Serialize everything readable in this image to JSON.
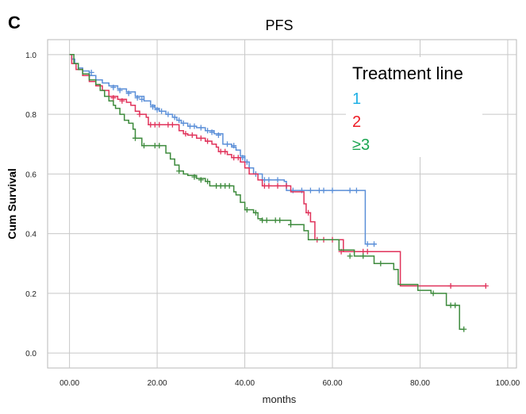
{
  "panel_label": "C",
  "chart_data": {
    "type": "line",
    "subtype": "kaplan-meier",
    "title": "PFS",
    "xlabel": "months",
    "ylabel": "Cum Survival",
    "xlim": [
      -5,
      102
    ],
    "ylim": [
      -0.05,
      1.05
    ],
    "x_ticks": [
      0,
      20,
      40,
      60,
      80,
      100
    ],
    "x_tick_labels": [
      "00.00",
      "20.00",
      "40.00",
      "60.00",
      "80.00",
      "100.00"
    ],
    "y_ticks": [
      0,
      0.2,
      0.4,
      0.6,
      0.8,
      1.0
    ],
    "y_tick_labels": [
      "0.0",
      "0.2",
      "0.4",
      "0.6",
      "0.8",
      "1.0"
    ],
    "grid": true,
    "legend": {
      "title": "Treatment line",
      "position": "top-right",
      "entries": [
        {
          "label": "1",
          "color": "#1fb0e6"
        },
        {
          "label": "2",
          "color": "#ee1c25"
        },
        {
          "label": "≥3",
          "color": "#1aa550"
        }
      ]
    },
    "series": [
      {
        "name": "1",
        "color": "#5b8fd8",
        "steps": [
          [
            0,
            1.0
          ],
          [
            0.5,
            0.985
          ],
          [
            1.2,
            0.97
          ],
          [
            2,
            0.955
          ],
          [
            3,
            0.945
          ],
          [
            4.5,
            0.93
          ],
          [
            6,
            0.915
          ],
          [
            7.5,
            0.905
          ],
          [
            9,
            0.895
          ],
          [
            11,
            0.885
          ],
          [
            13,
            0.875
          ],
          [
            15,
            0.86
          ],
          [
            17,
            0.845
          ],
          [
            18.5,
            0.83
          ],
          [
            19.5,
            0.82
          ],
          [
            20.5,
            0.81
          ],
          [
            22,
            0.8
          ],
          [
            23.5,
            0.79
          ],
          [
            24.5,
            0.78
          ],
          [
            25.5,
            0.77
          ],
          [
            27,
            0.76
          ],
          [
            29,
            0.755
          ],
          [
            31,
            0.745
          ],
          [
            33,
            0.735
          ],
          [
            35,
            0.7
          ],
          [
            37,
            0.69
          ],
          [
            38,
            0.68
          ],
          [
            39,
            0.66
          ],
          [
            40,
            0.64
          ],
          [
            41,
            0.62
          ],
          [
            42,
            0.6
          ],
          [
            44,
            0.58
          ],
          [
            47,
            0.58
          ],
          [
            49,
            0.575
          ],
          [
            49.5,
            0.545
          ],
          [
            67,
            0.545
          ],
          [
            67.5,
            0.365
          ],
          [
            70,
            0.365
          ]
        ],
        "censors": [
          [
            5,
            0.94
          ],
          [
            10,
            0.89
          ],
          [
            11.5,
            0.88
          ],
          [
            13.5,
            0.87
          ],
          [
            15.5,
            0.855
          ],
          [
            16.5,
            0.85
          ],
          [
            19,
            0.825
          ],
          [
            20,
            0.815
          ],
          [
            21,
            0.81
          ],
          [
            22.5,
            0.8
          ],
          [
            24,
            0.79
          ],
          [
            25,
            0.78
          ],
          [
            26,
            0.77
          ],
          [
            27.5,
            0.76
          ],
          [
            28.5,
            0.76
          ],
          [
            30,
            0.755
          ],
          [
            31.5,
            0.745
          ],
          [
            32.5,
            0.74
          ],
          [
            34,
            0.73
          ],
          [
            36,
            0.7
          ],
          [
            37.5,
            0.695
          ],
          [
            39.5,
            0.655
          ],
          [
            40.5,
            0.64
          ],
          [
            42.5,
            0.6
          ],
          [
            44.5,
            0.58
          ],
          [
            45.5,
            0.58
          ],
          [
            47.5,
            0.58
          ],
          [
            51,
            0.545
          ],
          [
            53,
            0.545
          ],
          [
            55,
            0.545
          ],
          [
            57,
            0.545
          ],
          [
            58,
            0.545
          ],
          [
            60,
            0.545
          ],
          [
            64,
            0.545
          ],
          [
            65.5,
            0.545
          ],
          [
            68,
            0.365
          ],
          [
            69.5,
            0.365
          ]
        ]
      },
      {
        "name": "2",
        "color": "#e0325a",
        "steps": [
          [
            0,
            1.0
          ],
          [
            0.5,
            0.97
          ],
          [
            1.5,
            0.95
          ],
          [
            3,
            0.93
          ],
          [
            4.5,
            0.91
          ],
          [
            6,
            0.895
          ],
          [
            7.5,
            0.88
          ],
          [
            9,
            0.86
          ],
          [
            11,
            0.85
          ],
          [
            13,
            0.84
          ],
          [
            14,
            0.83
          ],
          [
            15,
            0.81
          ],
          [
            16,
            0.8
          ],
          [
            17.5,
            0.79
          ],
          [
            18,
            0.765
          ],
          [
            24,
            0.765
          ],
          [
            25,
            0.745
          ],
          [
            26,
            0.735
          ],
          [
            27,
            0.73
          ],
          [
            29,
            0.72
          ],
          [
            31,
            0.71
          ],
          [
            32.5,
            0.7
          ],
          [
            33.5,
            0.69
          ],
          [
            34,
            0.675
          ],
          [
            36,
            0.665
          ],
          [
            37,
            0.655
          ],
          [
            39,
            0.64
          ],
          [
            40,
            0.62
          ],
          [
            41,
            0.6
          ],
          [
            43,
            0.58
          ],
          [
            44,
            0.56
          ],
          [
            50,
            0.56
          ],
          [
            50.5,
            0.54
          ],
          [
            53,
            0.54
          ],
          [
            53.5,
            0.5
          ],
          [
            54,
            0.47
          ],
          [
            55,
            0.44
          ],
          [
            56,
            0.38
          ],
          [
            62,
            0.38
          ],
          [
            62.5,
            0.34
          ],
          [
            75,
            0.34
          ],
          [
            75.5,
            0.225
          ],
          [
            95,
            0.225
          ]
        ],
        "censors": [
          [
            10,
            0.855
          ],
          [
            12,
            0.845
          ],
          [
            16,
            0.8
          ],
          [
            18.5,
            0.765
          ],
          [
            19.5,
            0.765
          ],
          [
            20.5,
            0.765
          ],
          [
            22.5,
            0.765
          ],
          [
            23.5,
            0.765
          ],
          [
            26.5,
            0.735
          ],
          [
            28,
            0.73
          ],
          [
            30,
            0.72
          ],
          [
            31.5,
            0.71
          ],
          [
            34.5,
            0.675
          ],
          [
            35.5,
            0.675
          ],
          [
            37.5,
            0.655
          ],
          [
            38.5,
            0.655
          ],
          [
            44.5,
            0.56
          ],
          [
            45.5,
            0.56
          ],
          [
            47.5,
            0.56
          ],
          [
            49.5,
            0.56
          ],
          [
            54.5,
            0.47
          ],
          [
            56.5,
            0.38
          ],
          [
            58,
            0.38
          ],
          [
            60,
            0.38
          ],
          [
            62,
            0.34
          ],
          [
            67,
            0.34
          ],
          [
            68,
            0.34
          ],
          [
            87,
            0.225
          ],
          [
            95,
            0.225
          ]
        ]
      },
      {
        "name": "≥3",
        "color": "#3d8a3c",
        "steps": [
          [
            0,
            1.0
          ],
          [
            1,
            0.97
          ],
          [
            2,
            0.95
          ],
          [
            3,
            0.935
          ],
          [
            4.5,
            0.915
          ],
          [
            6,
            0.9
          ],
          [
            7,
            0.88
          ],
          [
            8,
            0.86
          ],
          [
            9,
            0.845
          ],
          [
            10,
            0.83
          ],
          [
            10.5,
            0.82
          ],
          [
            11.5,
            0.8
          ],
          [
            12.5,
            0.78
          ],
          [
            13.5,
            0.77
          ],
          [
            14.5,
            0.75
          ],
          [
            15,
            0.72
          ],
          [
            16,
            0.72
          ],
          [
            16.5,
            0.695
          ],
          [
            21,
            0.695
          ],
          [
            22,
            0.67
          ],
          [
            23,
            0.65
          ],
          [
            24,
            0.63
          ],
          [
            25,
            0.61
          ],
          [
            26,
            0.6
          ],
          [
            27,
            0.595
          ],
          [
            29,
            0.585
          ],
          [
            31,
            0.575
          ],
          [
            32,
            0.56
          ],
          [
            37,
            0.56
          ],
          [
            37.5,
            0.54
          ],
          [
            38,
            0.53
          ],
          [
            39,
            0.505
          ],
          [
            40,
            0.48
          ],
          [
            42,
            0.47
          ],
          [
            43,
            0.45
          ],
          [
            44,
            0.445
          ],
          [
            50,
            0.445
          ],
          [
            50.5,
            0.43
          ],
          [
            53,
            0.43
          ],
          [
            53.5,
            0.41
          ],
          [
            54.5,
            0.38
          ],
          [
            61,
            0.38
          ],
          [
            61.5,
            0.345
          ],
          [
            65,
            0.325
          ],
          [
            69,
            0.325
          ],
          [
            69.5,
            0.3
          ],
          [
            73,
            0.3
          ],
          [
            74,
            0.28
          ],
          [
            75,
            0.23
          ],
          [
            79,
            0.23
          ],
          [
            79.5,
            0.21
          ],
          [
            82,
            0.21
          ],
          [
            82.5,
            0.2
          ],
          [
            85,
            0.2
          ],
          [
            86,
            0.16
          ],
          [
            88,
            0.16
          ],
          [
            89,
            0.08
          ],
          [
            90,
            0.08
          ]
        ],
        "censors": [
          [
            15,
            0.72
          ],
          [
            17,
            0.695
          ],
          [
            19.5,
            0.695
          ],
          [
            20.5,
            0.695
          ],
          [
            25,
            0.61
          ],
          [
            28.5,
            0.59
          ],
          [
            30,
            0.58
          ],
          [
            31.5,
            0.575
          ],
          [
            33.5,
            0.56
          ],
          [
            34.5,
            0.56
          ],
          [
            35.5,
            0.56
          ],
          [
            36.5,
            0.56
          ],
          [
            40.5,
            0.48
          ],
          [
            42.5,
            0.47
          ],
          [
            44,
            0.445
          ],
          [
            45,
            0.445
          ],
          [
            47,
            0.445
          ],
          [
            48,
            0.445
          ],
          [
            50.5,
            0.43
          ],
          [
            64,
            0.325
          ],
          [
            67,
            0.325
          ],
          [
            71,
            0.3
          ],
          [
            83,
            0.2
          ],
          [
            87,
            0.16
          ],
          [
            88,
            0.16
          ],
          [
            90,
            0.08
          ]
        ]
      }
    ]
  }
}
